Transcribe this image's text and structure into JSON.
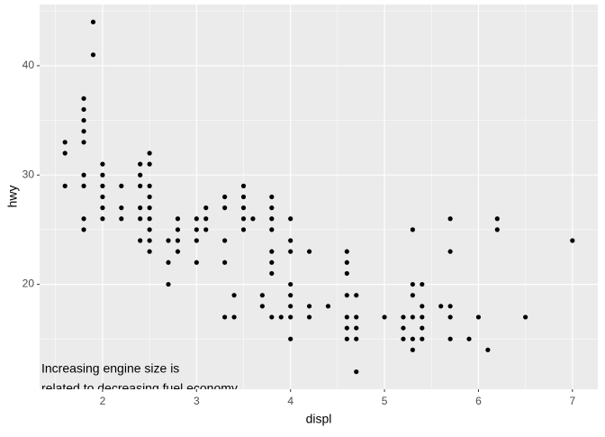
{
  "chart_data": {
    "type": "scatter",
    "x_label": "displ",
    "y_label": "hwy",
    "annotation": [
      "Increasing engine size is",
      "related to decreasing fuel economy."
    ],
    "xlim": [
      1.33,
      7.27
    ],
    "xticks": [
      2,
      3,
      4,
      5,
      6,
      7
    ],
    "ylim": [
      10.4,
      45.6
    ],
    "yticks": [
      20,
      30,
      40
    ],
    "grid": true,
    "color": "#000000",
    "x": [
      1.6,
      1.6,
      1.6,
      1.8,
      1.8,
      1.8,
      1.8,
      1.8,
      1.8,
      1.8,
      1.8,
      1.8,
      1.9,
      1.9,
      2,
      2,
      2,
      2,
      2,
      2,
      2.2,
      2.2,
      2.2,
      2.4,
      2.4,
      2.4,
      2.4,
      2.4,
      2.4,
      2.5,
      2.5,
      2.5,
      2.5,
      2.5,
      2.5,
      2.5,
      2.5,
      2.5,
      2.7,
      2.7,
      2.7,
      2.8,
      2.8,
      2.8,
      2.8,
      3,
      3,
      3,
      3,
      3.1,
      3.1,
      3.1,
      3.3,
      3.3,
      3.3,
      3.3,
      3.3,
      3.4,
      3.4,
      3.5,
      3.5,
      3.5,
      3.5,
      3.5,
      3.6,
      3.7,
      3.7,
      3.8,
      3.8,
      3.8,
      3.8,
      3.8,
      3.8,
      3.8,
      3.8,
      3.9,
      4,
      4,
      4,
      4,
      4,
      4,
      4,
      4,
      4.2,
      4.2,
      4.2,
      4.4,
      4.6,
      4.6,
      4.6,
      4.6,
      4.6,
      4.6,
      4.6,
      4.7,
      4.7,
      4.7,
      4.7,
      4.7,
      5,
      5.2,
      5.2,
      5.2,
      5.3,
      5.3,
      5.3,
      5.3,
      5.3,
      5.3,
      5.4,
      5.4,
      5.4,
      5.4,
      5.4,
      5.6,
      5.7,
      5.7,
      5.7,
      5.7,
      5.7,
      5.9,
      6,
      6.1,
      6.2,
      6.2,
      6.5,
      7
    ],
    "values": [
      33,
      32,
      29,
      37,
      36,
      35,
      34,
      33,
      30,
      29,
      26,
      25,
      44,
      41,
      31,
      30,
      29,
      28,
      27,
      26,
      29,
      27,
      26,
      31,
      30,
      29,
      27,
      26,
      24,
      32,
      31,
      29,
      28,
      27,
      26,
      25,
      24,
      23,
      24,
      22,
      20,
      26,
      25,
      24,
      23,
      26,
      25,
      24,
      22,
      27,
      26,
      25,
      28,
      27,
      24,
      22,
      17,
      19,
      17,
      29,
      28,
      27,
      26,
      25,
      26,
      19,
      18,
      28,
      27,
      26,
      25,
      23,
      22,
      21,
      17,
      17,
      26,
      24,
      23,
      20,
      19,
      18,
      17,
      15,
      23,
      18,
      17,
      18,
      23,
      22,
      21,
      19,
      17,
      16,
      15,
      19,
      17,
      16,
      15,
      12,
      17,
      17,
      16,
      15,
      25,
      20,
      19,
      17,
      15,
      14,
      20,
      18,
      17,
      16,
      15,
      18,
      26,
      23,
      18,
      17,
      15,
      15,
      17,
      14,
      26,
      25,
      17,
      24
    ]
  }
}
